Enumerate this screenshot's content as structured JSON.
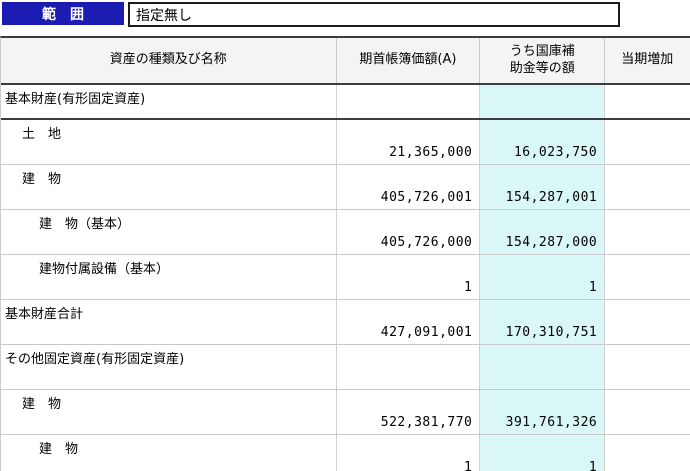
{
  "topbar": {
    "range_label": "範　囲",
    "range_value": "指定無し"
  },
  "table": {
    "columns": [
      {
        "label": "資産の種類及び名称"
      },
      {
        "label": "期首帳簿価額(A)"
      },
      {
        "label": "うち国庫補\n助金等の額"
      },
      {
        "label": "当期増加"
      }
    ],
    "rows": [
      {
        "name": "基本財産(有形固定資産)",
        "indent": 0,
        "section_first": true,
        "value_a": "",
        "subsidy": "",
        "increase": ""
      },
      {
        "name": "土　地",
        "indent": 1,
        "section_first": false,
        "value_a": "21,365,000",
        "subsidy": "16,023,750",
        "increase": ""
      },
      {
        "name": "建　物",
        "indent": 1,
        "section_first": false,
        "value_a": "405,726,001",
        "subsidy": "154,287,001",
        "increase": ""
      },
      {
        "name": "建　物（基本）",
        "indent": 2,
        "section_first": false,
        "value_a": "405,726,000",
        "subsidy": "154,287,000",
        "increase": ""
      },
      {
        "name": "建物付属設備（基本）",
        "indent": 2,
        "section_first": false,
        "value_a": "1",
        "subsidy": "1",
        "increase": ""
      },
      {
        "name": "基本財産合計",
        "indent": 0,
        "section_first": false,
        "value_a": "427,091,001",
        "subsidy": "170,310,751",
        "increase": ""
      },
      {
        "name": "その他固定資産(有形固定資産)",
        "indent": 0,
        "section_first": false,
        "value_a": "",
        "subsidy": "",
        "increase": ""
      },
      {
        "name": "建　物",
        "indent": 1,
        "section_first": false,
        "value_a": "522,381,770",
        "subsidy": "391,761,326",
        "increase": ""
      },
      {
        "name": "建　物",
        "indent": 2,
        "section_first": false,
        "value_a": "1",
        "subsidy": "1",
        "increase": ""
      }
    ],
    "colors": {
      "subsidy_column_bg": "#d9f7f7",
      "header_bg": "#f4f4f4",
      "range_label_bg": "#1c1cb2",
      "thick_border": "#3c3c3c"
    }
  }
}
